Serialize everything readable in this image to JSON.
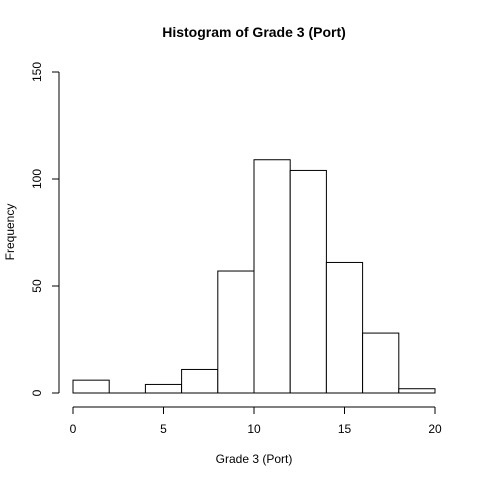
{
  "chart_data": {
    "type": "bar",
    "title": "Histogram of Grade 3 (Port)",
    "xlabel": "Grade 3 (Port)",
    "ylabel": "Frequency",
    "xlim": [
      0,
      20
    ],
    "ylim": [
      0,
      150
    ],
    "x_ticks": [
      "0",
      "5",
      "10",
      "15",
      "20"
    ],
    "y_ticks": [
      "0",
      "50",
      "100",
      "150"
    ],
    "bins": [
      {
        "start": 0,
        "end": 2,
        "count": 6
      },
      {
        "start": 2,
        "end": 4,
        "count": 0
      },
      {
        "start": 4,
        "end": 6,
        "count": 4
      },
      {
        "start": 6,
        "end": 8,
        "count": 11
      },
      {
        "start": 8,
        "end": 10,
        "count": 57
      },
      {
        "start": 10,
        "end": 12,
        "count": 109
      },
      {
        "start": 12,
        "end": 14,
        "count": 104
      },
      {
        "start": 14,
        "end": 16,
        "count": 61
      },
      {
        "start": 16,
        "end": 18,
        "count": 28
      },
      {
        "start": 18,
        "end": 20,
        "count": 2
      }
    ],
    "grid": false,
    "legend": "none"
  }
}
